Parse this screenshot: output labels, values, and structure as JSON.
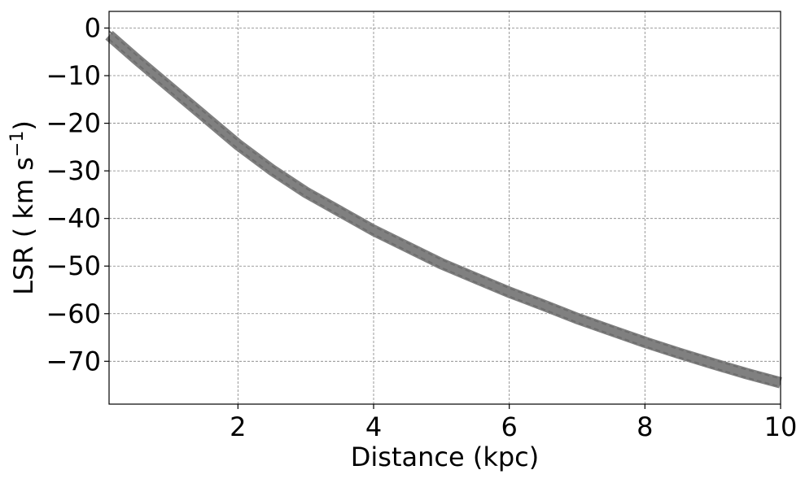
{
  "chart_data": {
    "type": "line",
    "title": "",
    "xlabel": "Distance (kpc)",
    "ylabel": "LSR ( km s",
    "ylabel_superscript": "−1",
    "ylabel_suffix": ")",
    "xlim": [
      0.1,
      10
    ],
    "ylim": [
      -79,
      3.5
    ],
    "x_ticks": [
      2,
      4,
      6,
      8,
      10
    ],
    "x_tick_labels": [
      "2",
      "4",
      "6",
      "8",
      "10"
    ],
    "y_ticks": [
      0,
      -10,
      -20,
      -30,
      -40,
      -50,
      -60,
      -70
    ],
    "y_tick_labels": [
      "0",
      "−10",
      "−20",
      "−30",
      "−40",
      "−50",
      "−60",
      "−70"
    ],
    "grid": true,
    "grid_color": "#808080",
    "series": [
      {
        "color": "#808080",
        "style": "thick dashed band",
        "x": [
          0.1,
          0.5,
          1,
          1.5,
          2,
          2.5,
          3,
          3.5,
          4,
          4.5,
          5,
          5.5,
          6,
          6.5,
          7,
          7.5,
          8,
          8.5,
          9,
          9.5,
          10
        ],
        "y": [
          -1.5,
          -6.5,
          -12.5,
          -18.5,
          -24.5,
          -29.8,
          -34.5,
          -38.5,
          -42.5,
          -46.0,
          -49.5,
          -52.5,
          -55.5,
          -58.2,
          -61.0,
          -63.5,
          -66.0,
          -68.3,
          -70.5,
          -72.6,
          -74.5
        ]
      }
    ]
  }
}
